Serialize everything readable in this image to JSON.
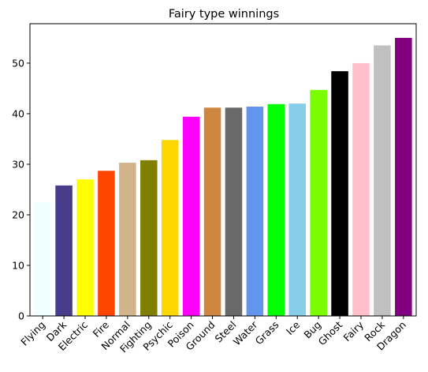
{
  "chart_data": {
    "type": "bar",
    "title": "Fairy type winnings",
    "xlabel": "",
    "ylabel": "",
    "categories": [
      "Flying",
      "Dark",
      "Electric",
      "Fire",
      "Normal",
      "Fighting",
      "Psychic",
      "Poison",
      "Ground",
      "Steel",
      "Water",
      "Grass",
      "Ice",
      "Bug",
      "Ghost",
      "Fairy",
      "Rock",
      "Dragon"
    ],
    "values": [
      22.5,
      25.8,
      27.0,
      28.7,
      30.3,
      30.8,
      34.8,
      39.4,
      41.2,
      41.2,
      41.4,
      41.9,
      42.0,
      44.7,
      48.4,
      50.0,
      53.5,
      55.0
    ],
    "colors": [
      "#f0ffff",
      "#483d8b",
      "#ffff00",
      "#ff4500",
      "#d2b48c",
      "#808000",
      "#ffd700",
      "#ff00ff",
      "#cd853f",
      "#696969",
      "#6495ed",
      "#00ff00",
      "#87ceeb",
      "#7cfc00",
      "#000000",
      "#ffc0cb",
      "#c0c0c0",
      "#800080"
    ],
    "ylim": [
      0,
      57.8
    ],
    "yticks": [
      0,
      10,
      20,
      30,
      40,
      50
    ],
    "grid": false,
    "legend": "none"
  }
}
